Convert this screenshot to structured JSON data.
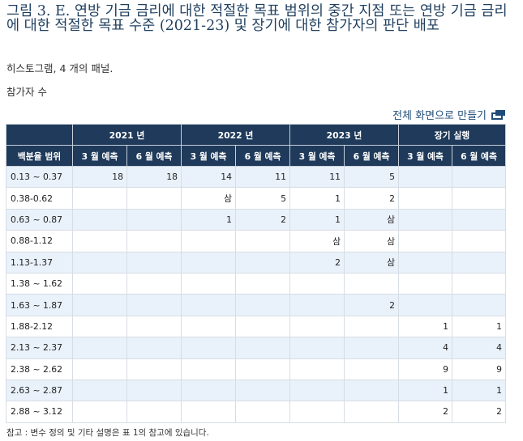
{
  "figure": {
    "title": "그림 3. E. 연방 기금 금리에 대한 적절한 목표 범위의 중간 지점 또는 연방 기금 금리에 대한 적절한 목표 수준 (2021-23) 및 장기에 대한 참가자의 판단 배포",
    "subtitle": "히스토그램, 4 개의 패널.",
    "units_label": "참가자 수",
    "fullscreen_label": "전체 화면으로 만들기",
    "note": "참고 : 변수 정의 및 기타 설명은 표 1의 참고에 있습니다."
  },
  "table": {
    "row_header": "백분율 범위",
    "groups": [
      "2021 년",
      "2022 년",
      "2023 년",
      "장기 실행"
    ],
    "subheaders": [
      "3 월 예측",
      "6 월 예측",
      "3 월 예측",
      "6 월 예측",
      "3 월 예측",
      "6 월 예측",
      "3 월 예측",
      "6 월 예측"
    ],
    "rows": [
      {
        "range": "0.13 ~ 0.37",
        "cells": [
          "18",
          "18",
          "14",
          "11",
          "11",
          "5",
          "",
          ""
        ]
      },
      {
        "range": "0.38-0.62",
        "cells": [
          "",
          "",
          "삼",
          "5",
          "1",
          "2",
          "",
          ""
        ]
      },
      {
        "range": "0.63 ~ 0.87",
        "cells": [
          "",
          "",
          "1",
          "2",
          "1",
          "삼",
          "",
          ""
        ]
      },
      {
        "range": "0.88-1.12",
        "cells": [
          "",
          "",
          "",
          "",
          "삼",
          "삼",
          "",
          ""
        ]
      },
      {
        "range": "1.13-1.37",
        "cells": [
          "",
          "",
          "",
          "",
          "2",
          "삼",
          "",
          ""
        ]
      },
      {
        "range": "1.38 ~ 1.62",
        "cells": [
          "",
          "",
          "",
          "",
          "",
          "",
          "",
          ""
        ]
      },
      {
        "range": "1.63 ~ 1.87",
        "cells": [
          "",
          "",
          "",
          "",
          "",
          "2",
          "",
          ""
        ]
      },
      {
        "range": "1.88-2.12",
        "cells": [
          "",
          "",
          "",
          "",
          "",
          "",
          "1",
          "1"
        ]
      },
      {
        "range": "2.13 ~ 2.37",
        "cells": [
          "",
          "",
          "",
          "",
          "",
          "",
          "4",
          "4"
        ]
      },
      {
        "range": "2.38 ~ 2.62",
        "cells": [
          "",
          "",
          "",
          "",
          "",
          "",
          "9",
          "9"
        ]
      },
      {
        "range": "2.63 ~ 2.87",
        "cells": [
          "",
          "",
          "",
          "",
          "",
          "",
          "1",
          "1"
        ]
      },
      {
        "range": "2.88 ~ 3.12",
        "cells": [
          "",
          "",
          "",
          "",
          "",
          "",
          "2",
          "2"
        ]
      }
    ]
  }
}
